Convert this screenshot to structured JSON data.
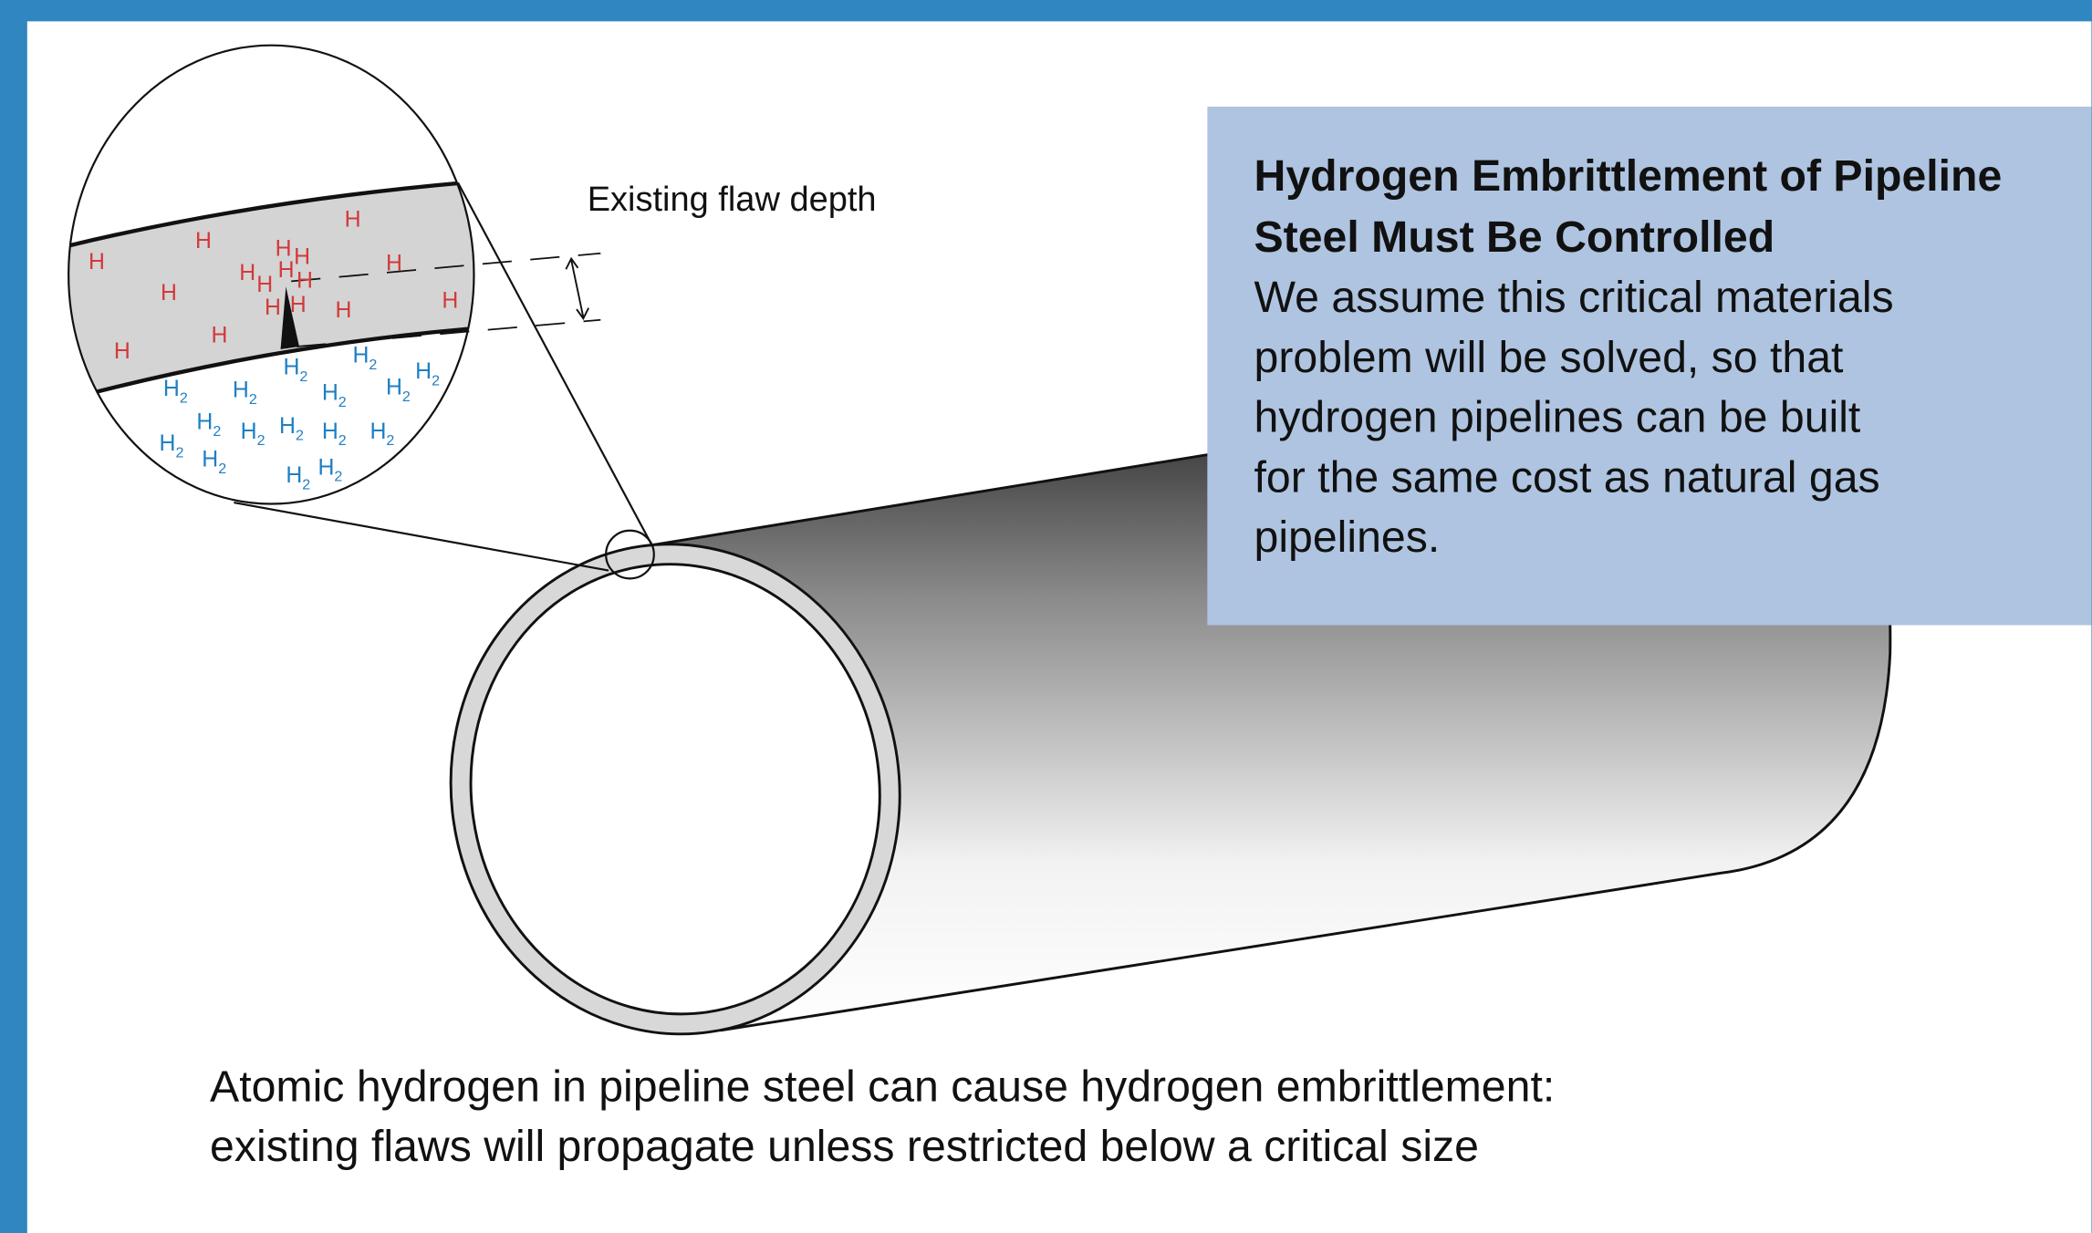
{
  "flaw_label": "Existing flaw depth",
  "info_box": {
    "title": [
      "Hydrogen Embrittlement of Pipeline",
      "Steel Must Be Controlled"
    ],
    "body": [
      "We assume this critical materials",
      "problem will be solved, so that",
      "hydrogen pipelines can be built",
      "for the same cost as natural gas",
      "pipelines."
    ]
  },
  "caption": [
    "Atomic hydrogen in pipeline steel can cause hydrogen embrittlement:",
    "existing flaws will propagate unless restricted below a critical size"
  ],
  "atom": "H",
  "molecule": {
    "symbol": "H",
    "subscript": "2"
  }
}
